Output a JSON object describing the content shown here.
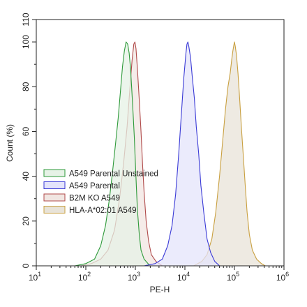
{
  "chart_data": {
    "type": "area",
    "title": "",
    "xlabel": "PE-H",
    "ylabel": "Count (%)",
    "xscale": "log",
    "xlim": [
      10,
      1000000
    ],
    "ylim": [
      0,
      110
    ],
    "x_ticks": [
      {
        "value": 10,
        "base": "10",
        "exp": "1"
      },
      {
        "value": 100,
        "base": "10",
        "exp": "2"
      },
      {
        "value": 1000,
        "base": "10",
        "exp": "3"
      },
      {
        "value": 10000,
        "base": "10",
        "exp": "4"
      },
      {
        "value": 100000,
        "base": "10",
        "exp": "5"
      },
      {
        "value": 1000000,
        "base": "10",
        "exp": "6"
      }
    ],
    "y_ticks": [
      0,
      10,
      20,
      30,
      40,
      50,
      60,
      70,
      80,
      90,
      100,
      110
    ],
    "y_tick_labels": [
      "0",
      "",
      "20",
      "",
      "40",
      "",
      "60",
      "",
      "80",
      "",
      "100",
      "110"
    ],
    "grid": false,
    "legend_position": "lower-left",
    "series": [
      {
        "name": "A549 Parental Unstained",
        "color": "#2e9a3a",
        "fill": "#e6f2e6",
        "points": [
          [
            60,
            0
          ],
          [
            100,
            1
          ],
          [
            150,
            3
          ],
          [
            200,
            9
          ],
          [
            250,
            18
          ],
          [
            300,
            30
          ],
          [
            350,
            43
          ],
          [
            400,
            55
          ],
          [
            450,
            66
          ],
          [
            500,
            78
          ],
          [
            550,
            89
          ],
          [
            600,
            96
          ],
          [
            650,
            100
          ],
          [
            700,
            99
          ],
          [
            750,
            95
          ],
          [
            800,
            88
          ],
          [
            850,
            78
          ],
          [
            900,
            68
          ],
          [
            950,
            58
          ],
          [
            1000,
            46
          ],
          [
            1050,
            35
          ],
          [
            1100,
            25
          ],
          [
            1200,
            14
          ],
          [
            1300,
            7
          ],
          [
            1500,
            3
          ],
          [
            1800,
            1
          ],
          [
            2000,
            0
          ]
        ]
      },
      {
        "name": "A549 Parental",
        "color": "#3a3ad6",
        "fill": "#e4e4fb",
        "points": [
          [
            1500,
            0
          ],
          [
            2500,
            1
          ],
          [
            3500,
            3
          ],
          [
            4500,
            9
          ],
          [
            5500,
            18
          ],
          [
            6500,
            32
          ],
          [
            7500,
            50
          ],
          [
            8500,
            68
          ],
          [
            9500,
            84
          ],
          [
            10500,
            95
          ],
          [
            11000,
            99
          ],
          [
            11500,
            100
          ],
          [
            12000,
            98
          ],
          [
            13000,
            93
          ],
          [
            14000,
            85
          ],
          [
            15500,
            75
          ],
          [
            17000,
            62
          ],
          [
            19000,
            50
          ],
          [
            21000,
            36
          ],
          [
            24000,
            24
          ],
          [
            28000,
            12
          ],
          [
            33000,
            6
          ],
          [
            40000,
            2
          ],
          [
            50000,
            0
          ]
        ]
      },
      {
        "name": "B2M KO A549",
        "color": "#b04a4a",
        "fill": "#f1e6e2",
        "points": [
          [
            80,
            0
          ],
          [
            130,
            1
          ],
          [
            200,
            3
          ],
          [
            280,
            7
          ],
          [
            380,
            16
          ],
          [
            480,
            30
          ],
          [
            580,
            46
          ],
          [
            680,
            62
          ],
          [
            780,
            80
          ],
          [
            860,
            92
          ],
          [
            930,
            99
          ],
          [
            980,
            100
          ],
          [
            1030,
            97
          ],
          [
            1100,
            88
          ],
          [
            1200,
            74
          ],
          [
            1300,
            60
          ],
          [
            1400,
            45
          ],
          [
            1500,
            33
          ],
          [
            1650,
            20
          ],
          [
            1850,
            11
          ],
          [
            2100,
            5
          ],
          [
            2600,
            2
          ],
          [
            3500,
            0
          ]
        ]
      },
      {
        "name": "HLA-A*02:01 A549",
        "color": "#c9a040",
        "fill": "#e8e3d8",
        "points": [
          [
            15000,
            0
          ],
          [
            22000,
            2
          ],
          [
            28000,
            5
          ],
          [
            35000,
            12
          ],
          [
            42000,
            24
          ],
          [
            50000,
            40
          ],
          [
            58000,
            56
          ],
          [
            66000,
            70
          ],
          [
            74000,
            80
          ],
          [
            82000,
            86
          ],
          [
            88000,
            92
          ],
          [
            93000,
            96
          ],
          [
            98000,
            99
          ],
          [
            100000,
            100
          ],
          [
            104000,
            98
          ],
          [
            110000,
            94
          ],
          [
            118000,
            86
          ],
          [
            128000,
            74
          ],
          [
            138000,
            62
          ],
          [
            150000,
            50
          ],
          [
            165000,
            36
          ],
          [
            180000,
            24
          ],
          [
            200000,
            14
          ],
          [
            230000,
            7
          ],
          [
            280000,
            3
          ],
          [
            350000,
            1
          ],
          [
            420000,
            0
          ]
        ]
      }
    ],
    "draw_order": [
      2,
      3,
      0,
      1
    ]
  }
}
